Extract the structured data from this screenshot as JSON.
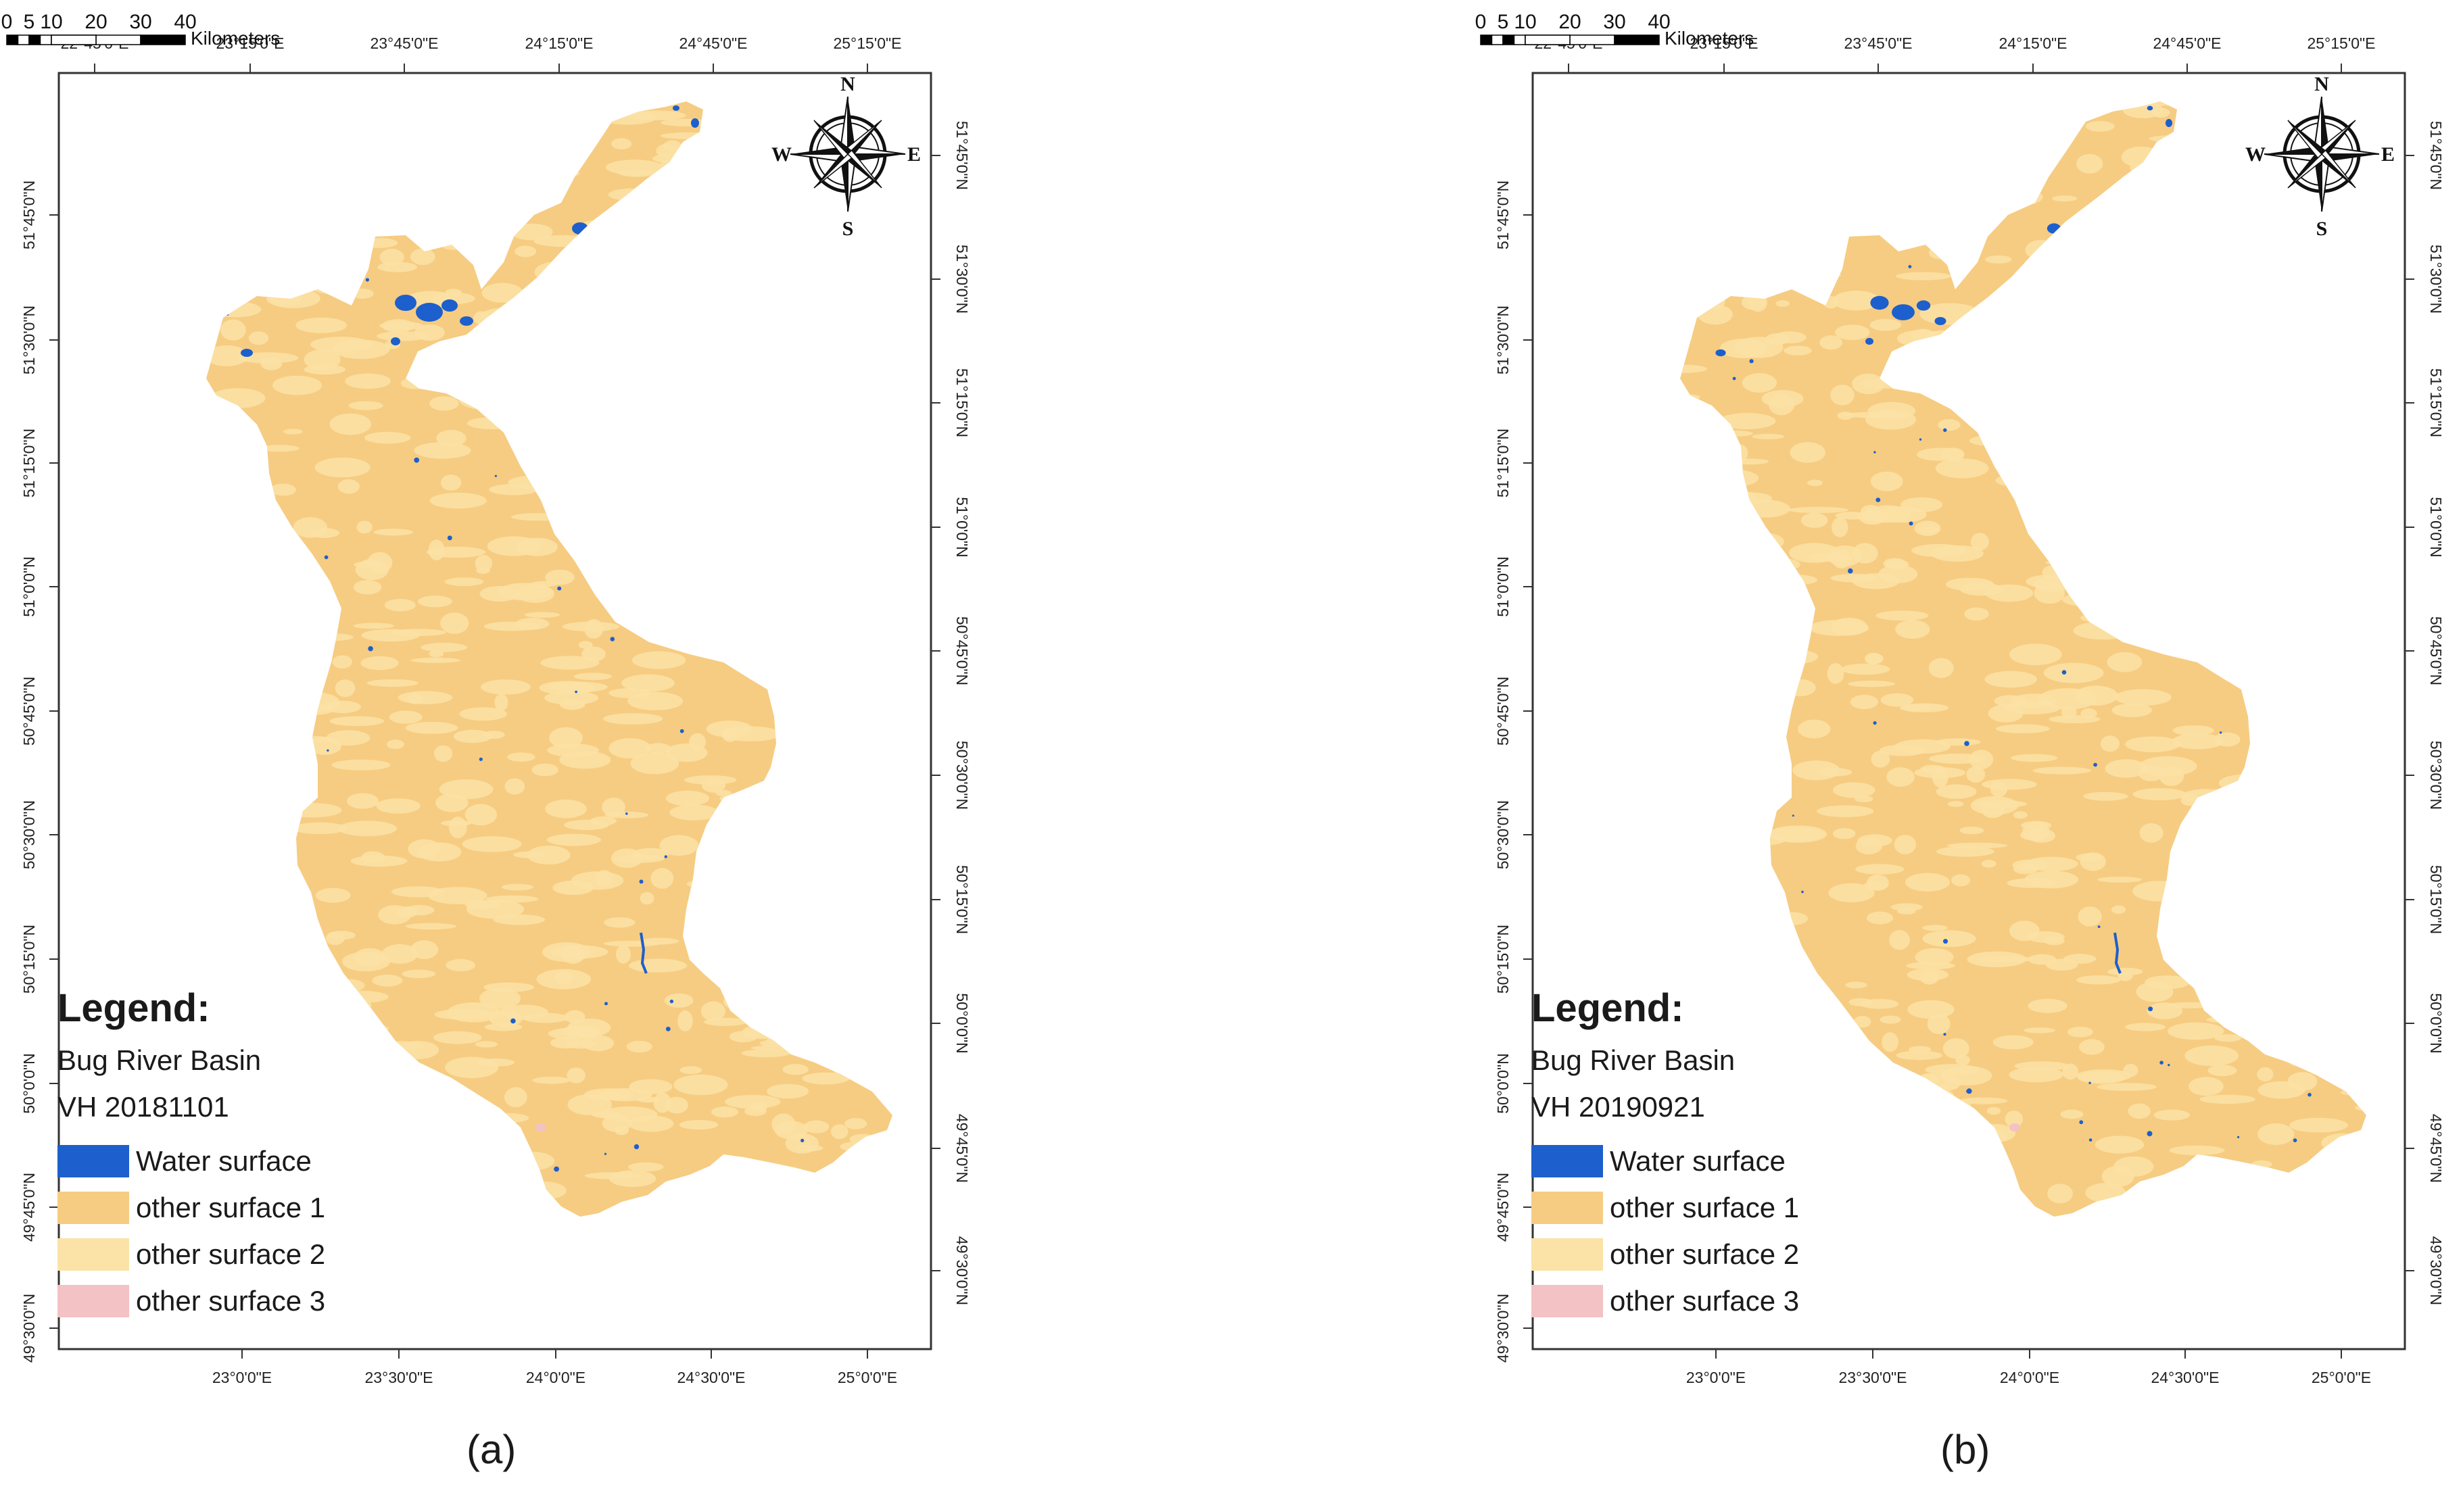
{
  "colors": {
    "water": "#1d5fcc",
    "other1": "#f6cc82",
    "other2": "#fbe2a6",
    "other3": "#f3c2c4",
    "frame": "#333333"
  },
  "axes": {
    "top_longitude_labels": [
      "22°45'0\"E",
      "23°15'0\"E",
      "23°45'0\"E",
      "24°15'0\"E",
      "24°45'0\"E",
      "25°15'0\"E"
    ],
    "bottom_longitude_labels": [
      "23°0'0\"E",
      "23°30'0\"E",
      "24°0'0\"E",
      "24°30'0\"E",
      "25°0'0\"E"
    ],
    "left_latitude_labels": [
      "51°45'0\"N",
      "51°30'0\"N",
      "51°15'0\"N",
      "51°0'0\"N",
      "50°45'0\"N",
      "50°30'0\"N",
      "50°15'0\"N",
      "50°0'0\"N",
      "49°45'0\"N",
      "49°30'0\"N"
    ],
    "right_latitude_labels": [
      "51°45'0\"N",
      "51°30'0\"N",
      "51°15'0\"N",
      "51°0'0\"N",
      "50°45'0\"N",
      "50°30'0\"N",
      "50°15'0\"N",
      "50°0'0\"N",
      "49°45'0\"N",
      "49°30'0\"N"
    ]
  },
  "compass": {
    "n": "N",
    "s": "S",
    "e": "E",
    "w": "W"
  },
  "scale": {
    "ticks": [
      "0",
      "5",
      "10",
      "20",
      "30",
      "40"
    ],
    "unit": "Kilometers"
  },
  "maps": [
    {
      "caption": "(a)",
      "legend": {
        "title": "Legend:",
        "basin": "Bug River Basin",
        "scene": "VH 20181101",
        "items": [
          {
            "label": "Water surface",
            "color_key": "water"
          },
          {
            "label": "other surface 1",
            "color_key": "other1"
          },
          {
            "label": "other surface 2",
            "color_key": "other2"
          },
          {
            "label": "other surface 3",
            "color_key": "other3"
          }
        ]
      }
    },
    {
      "caption": "(b)",
      "legend": {
        "title": "Legend:",
        "basin": "Bug River Basin",
        "scene": "VH 20190921",
        "items": [
          {
            "label": "Water surface",
            "color_key": "water"
          },
          {
            "label": "other surface 1",
            "color_key": "other1"
          },
          {
            "label": "other surface 2",
            "color_key": "other2"
          },
          {
            "label": "other surface 3",
            "color_key": "other3"
          }
        ]
      }
    }
  ]
}
